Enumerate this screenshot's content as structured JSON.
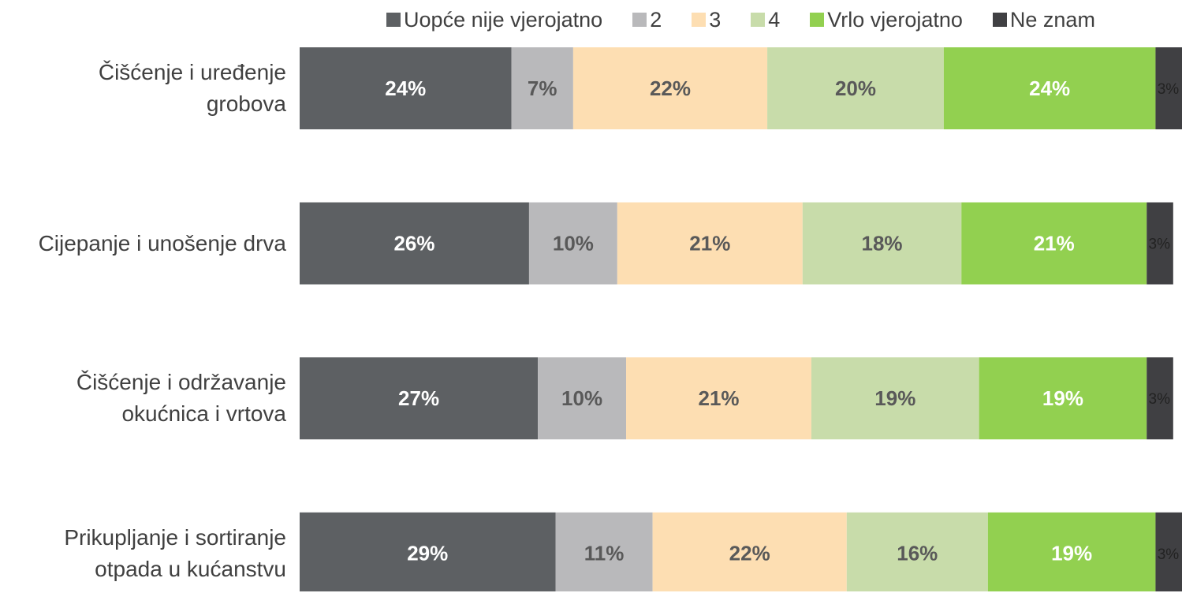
{
  "chart_data": {
    "type": "stacked-bar-horizontal",
    "categories": [
      "Čišćenje i uređenje grobova",
      "Cijepanje i unošenje drva",
      "Čišćenje i održavanje okućnica i vrtova",
      "Prikupljanje i sortiranje otpada u kućanstvu"
    ],
    "xlim": [
      0,
      100
    ],
    "series": [
      {
        "name": "Uopće nije vjerojatno",
        "color": "#5d6063",
        "values": [
          24,
          26,
          27,
          29
        ],
        "value_labels": [
          "24%",
          "26%",
          "27%",
          "29%"
        ]
      },
      {
        "name": "2",
        "color": "#b9b9bb",
        "values": [
          7,
          10,
          10,
          11
        ],
        "value_labels": [
          "7%",
          "10%",
          "10%",
          "11%"
        ]
      },
      {
        "name": "3",
        "color": "#fddeb2",
        "values": [
          22,
          21,
          21,
          22
        ],
        "value_labels": [
          "22%",
          "21%",
          "21%",
          "22%"
        ]
      },
      {
        "name": "4",
        "color": "#c8dcaa",
        "values": [
          20,
          18,
          19,
          16
        ],
        "value_labels": [
          "20%",
          "18%",
          "19%",
          "16%"
        ]
      },
      {
        "name": "Vrlo vjerojatno",
        "color": "#92d050",
        "values": [
          24,
          21,
          19,
          19
        ],
        "value_labels": [
          "24%",
          "21%",
          "19%",
          "19%"
        ]
      },
      {
        "name": "Ne znam",
        "color": "#404043",
        "values": [
          3,
          3,
          3,
          3
        ],
        "value_labels": [
          "3%",
          "3%",
          "3%",
          "3%"
        ]
      }
    ],
    "legend": "top"
  }
}
